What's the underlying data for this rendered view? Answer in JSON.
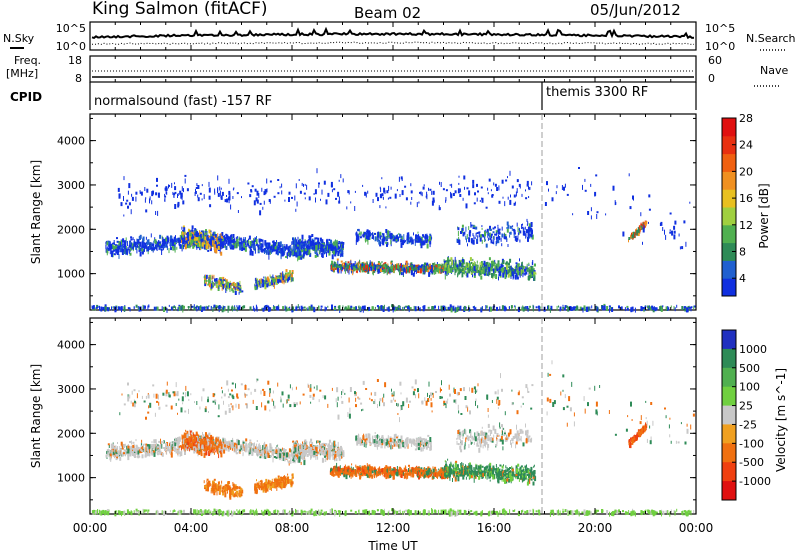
{
  "header": {
    "station": "King Salmon (fitACF)",
    "beam": "Beam 02",
    "date": "05/Jun/2012"
  },
  "noise_panel": {
    "left_label": "N.Sky",
    "left_ticks": [
      "10^5",
      "10^0"
    ],
    "right_label": "N.Search",
    "right_ticks": [
      "10^5",
      "10^0"
    ]
  },
  "freq_panel": {
    "left_label_1": "Freq.",
    "left_label_2": "[MHz]",
    "left_ticks": [
      "18",
      "8"
    ],
    "right_label": "Nave",
    "right_ticks": [
      "60",
      "0"
    ]
  },
  "cpid_panel": {
    "label": "CPID",
    "segments": [
      {
        "label": "normalsound (fast) -157 RF",
        "start_hour": 0
      },
      {
        "label": "themis 3300 RF",
        "start_hour": 18
      }
    ]
  },
  "chart_data": [
    {
      "type": "heatmap",
      "title": "",
      "parameter": "Power",
      "ylabel": "Slant Range [km]",
      "xlabel": "",
      "ylim": [
        180,
        4600
      ],
      "yticks": [
        "1000",
        "2000",
        "3000",
        "4000"
      ],
      "xlim_hours": [
        0,
        24
      ],
      "colorbar": {
        "label": "Power [dB]",
        "ticks": [
          "4",
          "8",
          "12",
          "16",
          "20",
          "24",
          "28"
        ],
        "colors": [
          "#1030e0",
          "#2060d0",
          "#2e8b57",
          "#50b050",
          "#a0d040",
          "#e8c020",
          "#f09020",
          "#f06010",
          "#e83010",
          "#e01010"
        ]
      },
      "regions": [
        {
          "x": [
            1.0,
            18.0
          ],
          "y": [
            1000,
            2200
          ],
          "level": "low",
          "note": "main scatter band"
        },
        {
          "x": [
            3.5,
            5.5
          ],
          "y": [
            1500,
            2300
          ],
          "level": "medium"
        },
        {
          "x": [
            9.5,
            14.0
          ],
          "y": [
            900,
            1500
          ],
          "level": "medium"
        },
        {
          "x": [
            21.3,
            22.0
          ],
          "y": [
            1800,
            2200
          ],
          "level": "high"
        }
      ]
    },
    {
      "type": "heatmap",
      "title": "",
      "parameter": "Velocity",
      "ylabel": "Slant Range [km]",
      "xlabel": "Time UT",
      "ylim": [
        180,
        4600
      ],
      "yticks": [
        "1000",
        "2000",
        "3000",
        "4000"
      ],
      "xlim_hours": [
        0,
        24
      ],
      "xticks": [
        "00:00",
        "04:00",
        "08:00",
        "12:00",
        "16:00",
        "20:00",
        "00:00"
      ],
      "colorbar": {
        "label": "Velocity [m s^-1]",
        "ticks": [
          "1000",
          "500",
          "100",
          "25",
          "-25",
          "-100",
          "-500",
          "-1000"
        ],
        "colors": [
          "#2030c0",
          "#2e8b57",
          "#50b050",
          "#70d040",
          "#c8c8c8",
          "#f0a020",
          "#f07010",
          "#f04010",
          "#e01010"
        ]
      },
      "regions": [
        {
          "x": [
            2.0,
            14.0
          ],
          "y": [
            1900,
            2500
          ],
          "level": "ground (grey)"
        },
        {
          "x": [
            9.5,
            14.0
          ],
          "y": [
            900,
            1500
          ],
          "level": "negative (orange)"
        },
        {
          "x": [
            14.0,
            17.5
          ],
          "y": [
            800,
            1600
          ],
          "level": "positive (green)"
        },
        {
          "x": [
            21.3,
            22.0
          ],
          "y": [
            1800,
            2200
          ],
          "level": "negative (orange)"
        }
      ]
    }
  ]
}
